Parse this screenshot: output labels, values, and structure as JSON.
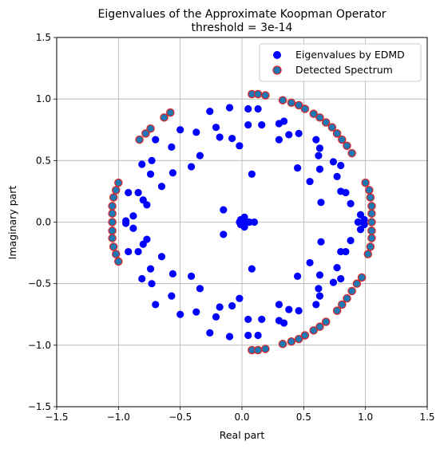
{
  "chart_data": {
    "type": "scatter",
    "title": "Eigenvalues of the Approximate Koopman Operator",
    "subtitle": "threshold = 3e-14",
    "xlabel": "Real part",
    "ylabel": "Imaginary part",
    "xlim": [
      -1.5,
      1.5
    ],
    "ylim": [
      -1.5,
      1.5
    ],
    "xticks": [
      "−1.5",
      "−1.0",
      "−0.5",
      "0.0",
      "0.5",
      "1.0",
      "1.5"
    ],
    "yticks": [
      "−1.5",
      "−1.0",
      "−0.5",
      "0.0",
      "0.5",
      "1.0",
      "1.5"
    ],
    "grid": true,
    "legend_position": "top-right",
    "colors": {
      "edmd_fill": "#0000ff",
      "detected_fill": "#1f77b4",
      "detected_edge": "#d62728",
      "grid": "#b0b0b0"
    },
    "series": [
      {
        "name": "Eigenvalues by EDMD",
        "points": [
          [
            0.0,
            0.0
          ],
          [
            0.02,
            0.04
          ],
          [
            0.02,
            -0.04
          ],
          [
            0.04,
            0.0
          ],
          [
            -0.02,
            0.0
          ],
          [
            0.06,
            0.0
          ],
          [
            0.1,
            0.0
          ],
          [
            -0.01,
            0.02
          ],
          [
            -0.01,
            -0.02
          ],
          [
            -0.15,
            0.1
          ],
          [
            -0.15,
            -0.1
          ],
          [
            0.08,
            0.39
          ],
          [
            0.08,
            -0.38
          ],
          [
            0.05,
            0.92
          ],
          [
            0.05,
            -0.92
          ],
          [
            0.05,
            0.79
          ],
          [
            0.05,
            -0.79
          ],
          [
            -0.1,
            0.93
          ],
          [
            -0.1,
            -0.93
          ],
          [
            0.16,
            0.79
          ],
          [
            0.16,
            -0.79
          ],
          [
            -0.26,
            0.9
          ],
          [
            -0.26,
            -0.9
          ],
          [
            0.13,
            0.92
          ],
          [
            0.13,
            -0.92
          ],
          [
            -0.21,
            0.77
          ],
          [
            -0.21,
            -0.77
          ],
          [
            -0.18,
            0.69
          ],
          [
            -0.18,
            -0.69
          ],
          [
            -0.02,
            0.62
          ],
          [
            -0.02,
            -0.62
          ],
          [
            -0.08,
            0.68
          ],
          [
            -0.08,
            -0.68
          ],
          [
            0.3,
            0.8
          ],
          [
            0.3,
            -0.8
          ],
          [
            0.3,
            0.67
          ],
          [
            0.3,
            -0.67
          ],
          [
            0.38,
            0.71
          ],
          [
            0.38,
            -0.71
          ],
          [
            0.46,
            0.72
          ],
          [
            0.46,
            -0.72
          ],
          [
            -0.37,
            0.73
          ],
          [
            -0.37,
            -0.73
          ],
          [
            -0.34,
            0.54
          ],
          [
            -0.34,
            -0.54
          ],
          [
            -0.41,
            0.45
          ],
          [
            -0.41,
            -0.44
          ],
          [
            -0.5,
            0.75
          ],
          [
            -0.5,
            -0.75
          ],
          [
            -0.57,
            0.61
          ],
          [
            -0.57,
            -0.6
          ],
          [
            -0.7,
            0.67
          ],
          [
            -0.7,
            -0.67
          ],
          [
            -0.73,
            0.5
          ],
          [
            -0.73,
            -0.5
          ],
          [
            -0.74,
            0.39
          ],
          [
            -0.74,
            -0.38
          ],
          [
            -0.81,
            0.47
          ],
          [
            -0.81,
            -0.46
          ],
          [
            -0.56,
            0.4
          ],
          [
            -0.56,
            -0.42
          ],
          [
            -0.65,
            0.29
          ],
          [
            -0.65,
            -0.28
          ],
          [
            -0.8,
            0.18
          ],
          [
            -0.8,
            -0.18
          ],
          [
            -0.77,
            0.14
          ],
          [
            -0.77,
            -0.14
          ],
          [
            -0.84,
            0.24
          ],
          [
            -0.84,
            -0.24
          ],
          [
            -0.92,
            0.24
          ],
          [
            -0.92,
            -0.24
          ],
          [
            -0.88,
            0.05
          ],
          [
            -0.88,
            -0.05
          ],
          [
            -0.94,
            0.01
          ],
          [
            -0.94,
            -0.01
          ],
          [
            0.34,
            0.82
          ],
          [
            0.34,
            -0.82
          ],
          [
            0.45,
            0.44
          ],
          [
            0.45,
            -0.44
          ],
          [
            0.6,
            0.67
          ],
          [
            0.6,
            -0.67
          ],
          [
            0.62,
            0.54
          ],
          [
            0.62,
            -0.54
          ],
          [
            0.63,
            0.6
          ],
          [
            0.63,
            -0.6
          ],
          [
            0.74,
            0.49
          ],
          [
            0.74,
            -0.49
          ],
          [
            0.8,
            0.46
          ],
          [
            0.8,
            -0.46
          ],
          [
            0.55,
            0.33
          ],
          [
            0.55,
            -0.33
          ],
          [
            0.64,
            0.16
          ],
          [
            0.64,
            -0.16
          ],
          [
            0.63,
            0.43
          ],
          [
            0.63,
            -0.43
          ],
          [
            0.77,
            0.37
          ],
          [
            0.77,
            -0.37
          ],
          [
            0.8,
            0.25
          ],
          [
            0.8,
            -0.24
          ],
          [
            0.84,
            0.24
          ],
          [
            0.84,
            -0.24
          ],
          [
            0.88,
            0.15
          ],
          [
            0.88,
            -0.15
          ],
          [
            0.94,
            0.0
          ],
          [
            0.96,
            0.06
          ],
          [
            0.96,
            -0.06
          ],
          [
            0.99,
            0.02
          ],
          [
            0.99,
            -0.02
          ]
        ]
      },
      {
        "name": "Detected Spectrum",
        "points": [
          [
            0.08,
            1.04
          ],
          [
            0.13,
            1.04
          ],
          [
            0.19,
            1.03
          ],
          [
            0.33,
            0.99
          ],
          [
            0.4,
            0.97
          ],
          [
            0.46,
            0.95
          ],
          [
            0.51,
            0.92
          ],
          [
            0.58,
            0.88
          ],
          [
            0.63,
            0.85
          ],
          [
            0.68,
            0.81
          ],
          [
            0.73,
            0.77
          ],
          [
            0.77,
            0.72
          ],
          [
            0.81,
            0.67
          ],
          [
            0.85,
            0.62
          ],
          [
            0.89,
            0.56
          ],
          [
            0.08,
            -1.04
          ],
          [
            0.13,
            -1.04
          ],
          [
            0.19,
            -1.03
          ],
          [
            0.33,
            -0.99
          ],
          [
            0.4,
            -0.97
          ],
          [
            0.46,
            -0.95
          ],
          [
            0.51,
            -0.92
          ],
          [
            0.58,
            -0.88
          ],
          [
            0.63,
            -0.85
          ],
          [
            0.68,
            -0.81
          ],
          [
            0.77,
            -0.72
          ],
          [
            0.81,
            -0.67
          ],
          [
            0.85,
            -0.62
          ],
          [
            0.89,
            -0.56
          ],
          [
            0.93,
            -0.5
          ],
          [
            0.97,
            -0.45
          ],
          [
            1.0,
            0.32
          ],
          [
            1.03,
            0.26
          ],
          [
            1.04,
            0.2
          ],
          [
            1.05,
            0.13
          ],
          [
            1.05,
            0.07
          ],
          [
            1.05,
            0.0
          ],
          [
            1.05,
            -0.07
          ],
          [
            1.05,
            -0.13
          ],
          [
            1.04,
            -0.2
          ],
          [
            1.02,
            -0.26
          ],
          [
            -1.0,
            0.32
          ],
          [
            -1.02,
            0.26
          ],
          [
            -1.04,
            0.2
          ],
          [
            -1.05,
            0.13
          ],
          [
            -1.05,
            0.07
          ],
          [
            -1.05,
            0.0
          ],
          [
            -1.05,
            -0.07
          ],
          [
            -1.05,
            -0.13
          ],
          [
            -1.04,
            -0.2
          ],
          [
            -1.02,
            -0.26
          ],
          [
            -1.0,
            -0.32
          ],
          [
            -0.58,
            0.89
          ],
          [
            -0.63,
            0.85
          ],
          [
            -0.74,
            0.76
          ],
          [
            -0.78,
            0.72
          ],
          [
            -0.83,
            0.67
          ]
        ]
      }
    ]
  }
}
